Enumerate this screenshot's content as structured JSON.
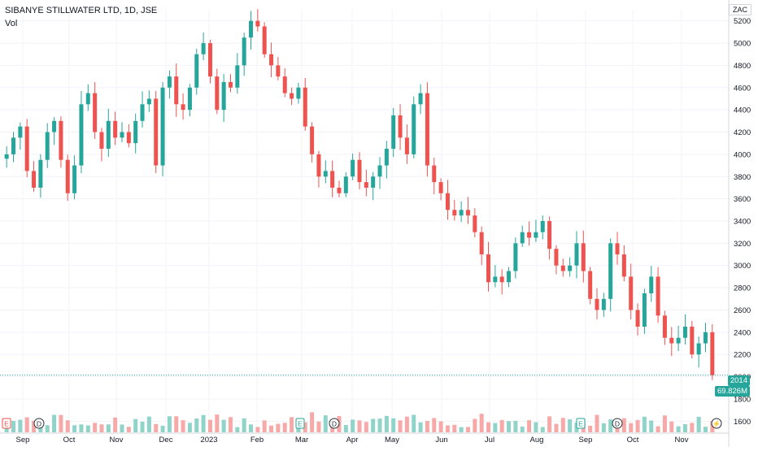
{
  "header": {
    "title": "SIBANYE STILLWATER LTD, 1D, JSE",
    "vol_label": "Vol",
    "currency": "ZAC"
  },
  "price_tags": {
    "last_price": "2014",
    "last_volume": "69.826M"
  },
  "colors": {
    "up": "#26a69a",
    "down": "#ef5350",
    "up_vol": "#8fd3c9",
    "down_vol": "#f7a9a7",
    "last_line": "#26a69a"
  },
  "events": [
    {
      "type": "E",
      "label": "E",
      "month": "Aug-2022"
    },
    {
      "type": "D",
      "label": "D",
      "month": "Sep-2022"
    },
    {
      "type": "E",
      "label": "E",
      "month": "Feb-2023"
    },
    {
      "type": "D",
      "label": "D",
      "month": "Mar-2023"
    },
    {
      "type": "E",
      "label": "E",
      "month": "Aug-2023"
    },
    {
      "type": "D",
      "label": "D",
      "month": "Sep-2023"
    },
    {
      "type": "split",
      "label": "⚡",
      "month": "Nov-2023"
    }
  ],
  "chart_data": {
    "type": "candlestick",
    "title": "SIBANYE STILLWATER LTD, 1D, JSE",
    "y_unit": "ZAC",
    "ylim": [
      1500,
      5300
    ],
    "y_ticks": [
      1600,
      1800,
      2000,
      2200,
      2400,
      2600,
      2800,
      3000,
      3200,
      3400,
      3600,
      3800,
      4000,
      4200,
      4400,
      4600,
      4800,
      5000,
      5200
    ],
    "x_ticks": [
      "Sep",
      "Oct",
      "Nov",
      "Dec",
      "2023",
      "Feb",
      "Mar",
      "Apr",
      "May",
      "Jun",
      "Jul",
      "Aug",
      "Sep",
      "Oct",
      "Nov"
    ],
    "last_price": 2014,
    "last_volume": "69.826M",
    "closes": [
      4000,
      4150,
      4250,
      3850,
      3700,
      3950,
      4200,
      4300,
      3950,
      3650,
      3900,
      4450,
      4550,
      4200,
      4050,
      4300,
      4150,
      4200,
      4100,
      4300,
      4450,
      4500,
      3900,
      4600,
      4700,
      4450,
      4400,
      4600,
      4900,
      5000,
      4700,
      4400,
      4650,
      4600,
      4800,
      5050,
      5200,
      5150,
      4900,
      4800,
      4700,
      4550,
      4500,
      4600,
      4250,
      4000,
      3800,
      3850,
      3700,
      3650,
      3800,
      3950,
      3750,
      3700,
      3800,
      3900,
      4050,
      4350,
      4150,
      4000,
      4450,
      4550,
      3900,
      3750,
      3650,
      3500,
      3450,
      3500,
      3450,
      3300,
      3100,
      2850,
      2900,
      2850,
      2950,
      3200,
      3300,
      3250,
      3300,
      3400,
      3150,
      3000,
      2950,
      3000,
      3200,
      2950,
      2700,
      2600,
      2700,
      3200,
      3100,
      2900,
      2600,
      2450,
      2750,
      2900,
      2550,
      2350,
      2300,
      2350,
      2450,
      2200,
      2300,
      2400,
      2014
    ],
    "volume_unit": "shares"
  }
}
